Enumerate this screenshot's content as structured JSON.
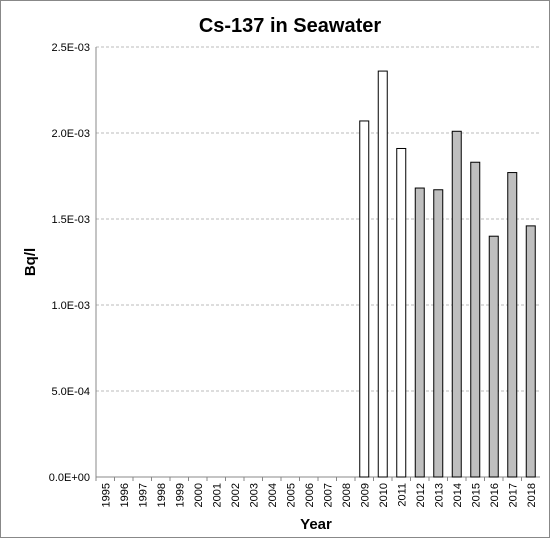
{
  "chart_data": {
    "type": "bar",
    "title": "Cs-137 in Seawater",
    "x_label": "Year",
    "y_label": "Bq/l",
    "categories": [
      "1995",
      "1996",
      "1997",
      "1998",
      "1999",
      "2000",
      "2001",
      "2002",
      "2003",
      "2004",
      "2005",
      "2006",
      "2007",
      "2008",
      "2009",
      "2010",
      "2011",
      "2012",
      "2013",
      "2014",
      "2015",
      "2016",
      "2017",
      "2018"
    ],
    "values": [
      null,
      null,
      null,
      null,
      null,
      null,
      null,
      null,
      null,
      null,
      null,
      null,
      null,
      null,
      0.00207,
      0.00236,
      0.00191,
      0.00168,
      0.00167,
      0.00201,
      0.00183,
      0.0014,
      0.00177,
      0.00146
    ],
    "colors": [
      null,
      null,
      null,
      null,
      null,
      null,
      null,
      null,
      null,
      null,
      null,
      null,
      null,
      null,
      "#ffffff",
      "#ffffff",
      "#ffffff",
      "#bfbfbf",
      "#bfbfbf",
      "#bfbfbf",
      "#bfbfbf",
      "#bfbfbf",
      "#bfbfbf",
      "#bfbfbf"
    ],
    "ylim": [
      0,
      0.0025
    ],
    "yticks": [
      {
        "value": 0,
        "label": "0.0E+00"
      },
      {
        "value": 0.0005,
        "label": "5.0E-04"
      },
      {
        "value": 0.001,
        "label": "1.0E-03"
      },
      {
        "value": 0.0015,
        "label": "1.5E-03"
      },
      {
        "value": 0.002,
        "label": "2.0E-03"
      },
      {
        "value": 0.0025,
        "label": "2.5E-03"
      }
    ],
    "grid": true
  }
}
